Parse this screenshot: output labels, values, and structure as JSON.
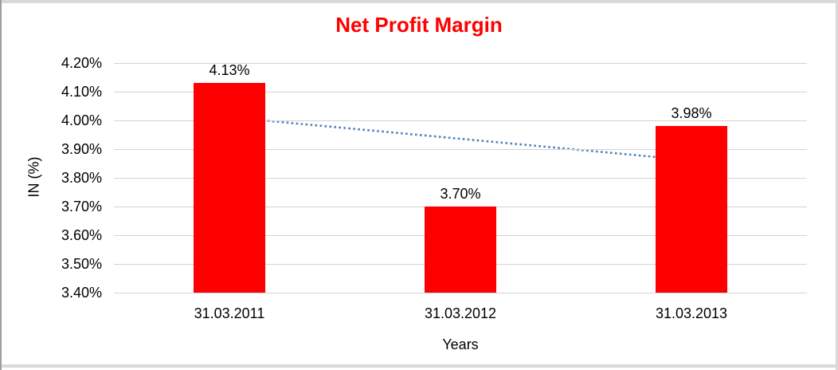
{
  "frame": {
    "background": "#FFFFFF",
    "border_light": "#D9D9D9",
    "border_dark": "#9E9E9E"
  },
  "chart_data": {
    "type": "bar",
    "title": "Net Profit Margin",
    "title_color": "#FF0000",
    "xlabel": "Years",
    "ylabel": "IN (%)",
    "categories": [
      "31.03.2011",
      "31.03.2012",
      "31.03.2013"
    ],
    "values": [
      4.13,
      3.7,
      3.98
    ],
    "value_labels": [
      "4.13%",
      "3.70%",
      "3.98%"
    ],
    "bar_color": "#FF0000",
    "grid_color": "#D3D3D3",
    "grid": "on",
    "legend": "none",
    "text_color": "#000000",
    "y_axis": {
      "min": 3.4,
      "max": 4.2,
      "step": 0.1,
      "tick_labels": [
        "4.20%",
        "4.10%",
        "4.00%",
        "3.90%",
        "3.80%",
        "3.70%",
        "3.60%",
        "3.50%",
        "3.40%"
      ]
    },
    "trendline": {
      "type": "linear",
      "style": "dotted",
      "color": "#4F81BD",
      "start_value": 4.011,
      "end_value": 3.861
    }
  }
}
